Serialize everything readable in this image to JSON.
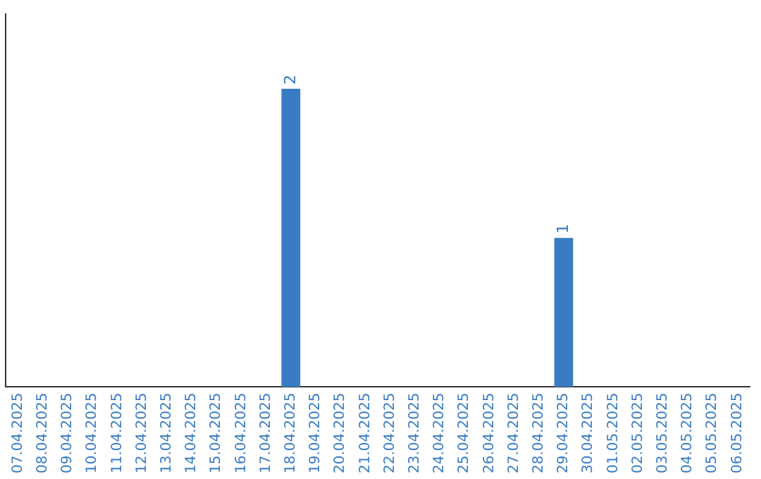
{
  "chart_data": {
    "type": "bar",
    "categories": [
      "07.04.2025",
      "08.04.2025",
      "09.04.2025",
      "10.04.2025",
      "11.04.2025",
      "12.04.2025",
      "13.04.2025",
      "14.04.2025",
      "15.04.2025",
      "16.04.2025",
      "17.04.2025",
      "18.04.2025",
      "19.04.2025",
      "20.04.2025",
      "21.04.2025",
      "22.04.2025",
      "23.04.2025",
      "24.04.2025",
      "25.04.2025",
      "26.04.2025",
      "27.04.2025",
      "28.04.2025",
      "29.04.2025",
      "30.04.2025",
      "01.05.2025",
      "02.05.2025",
      "03.05.2025",
      "04.05.2025",
      "05.05.2025",
      "06.05.2025"
    ],
    "values": [
      0,
      0,
      0,
      0,
      0,
      0,
      0,
      0,
      0,
      0,
      0,
      2,
      0,
      0,
      0,
      0,
      0,
      0,
      0,
      0,
      0,
      0,
      1,
      0,
      0,
      0,
      0,
      0,
      0,
      0
    ],
    "value_labels": [
      null,
      null,
      null,
      null,
      null,
      null,
      null,
      null,
      null,
      null,
      null,
      "2",
      null,
      null,
      null,
      null,
      null,
      null,
      null,
      null,
      null,
      null,
      "1",
      null,
      null,
      null,
      null,
      null,
      null,
      null
    ],
    "color": "#3a7cc3",
    "grid": false,
    "legend": false,
    "tick_labels": "x"
  }
}
